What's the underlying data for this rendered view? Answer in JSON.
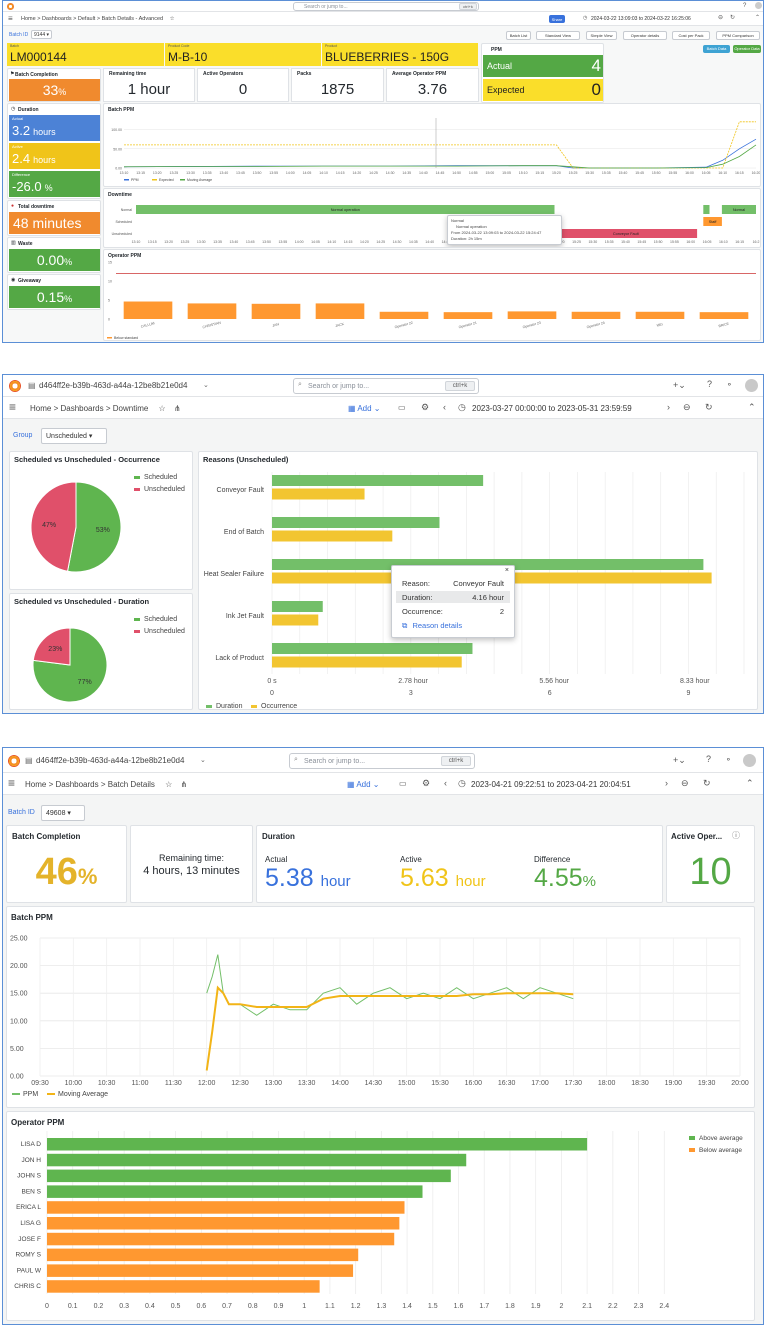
{
  "s1": {
    "search_placeholder": "Search or jump to...",
    "kbd": "ctrl+k",
    "breadcrumb": [
      "Home",
      "Dashboards",
      "Default",
      "Batch Details - Advanced"
    ],
    "share": "Share",
    "time_range": "2024-03-22 13:09:03 to 2024-03-22 16:25:06",
    "batch_label": "Batch ID",
    "batch_value": "9144",
    "buttons": [
      "Batch List",
      "Standard View",
      "Simple View",
      "Operator details",
      "Cost per Pack",
      "PPM Comparison"
    ],
    "edit_btn": "Batch Data",
    "op_btn": "Operator Data",
    "info": [
      {
        "label": "Batch",
        "value": "LM000144"
      },
      {
        "label": "Product Code",
        "value": "M-B-10"
      },
      {
        "label": "Product",
        "value": "BLUEBERRIES - 150G"
      }
    ],
    "ppm_title": "PPM",
    "ppm_actual_label": "Actual",
    "ppm_actual_value": "4",
    "ppm_expected_label": "Expected",
    "ppm_expected_value": "0",
    "stats": [
      {
        "title": "Batch Completion",
        "value": "33",
        "unit": "%"
      },
      {
        "title": "Remaining time",
        "value": "1 hour"
      },
      {
        "title": "Active Operators",
        "value": "0"
      },
      {
        "title": "Packs",
        "value": "1875"
      },
      {
        "title": "Average Operator PPM",
        "value": "3.76"
      }
    ],
    "duration_title": "Duration",
    "duration": [
      {
        "label": "Actual",
        "value": "3.2",
        "unit": "hours",
        "color": "#4c82d6"
      },
      {
        "label": "Active",
        "value": "2.4",
        "unit": "hours",
        "color": "#f0c419"
      },
      {
        "label": "Difference",
        "value": "-26.0",
        "unit": "%",
        "color": "#54a845"
      }
    ],
    "downtime_total_title": "Total downtime",
    "downtime_total_value": "48 minutes",
    "waste_title": "Waste",
    "waste_value": "0.00",
    "waste_unit": "%",
    "giveaway_title": "Giveaway",
    "giveaway_value": "0.15",
    "giveaway_unit": "%",
    "batch_ppm_title": "Batch PPM",
    "batch_ppm_yticks": [
      "100.00",
      "50.00",
      "0.00"
    ],
    "batch_ppm_xticks": [
      "13:10",
      "13:15",
      "13:20",
      "13:25",
      "13:30",
      "13:35",
      "13:40",
      "13:45",
      "13:50",
      "13:55",
      "14:00",
      "14:05",
      "14:10",
      "14:15",
      "14:20",
      "14:25",
      "14:30",
      "14:35",
      "14:40",
      "14:45",
      "14:50",
      "14:55",
      "15:00",
      "15:05",
      "15:10",
      "15:15",
      "15:20",
      "15:25",
      "15:30",
      "15:35",
      "15:40",
      "15:45",
      "15:50",
      "15:55",
      "16:00",
      "16:05",
      "16:10",
      "16:15",
      "16:20"
    ],
    "batch_ppm_legend": [
      "PPM",
      "Expected",
      "Moving Average"
    ],
    "downtime_title": "Downtime",
    "downtime_rows": [
      "Normal",
      "Scheduled",
      "Unscheduled"
    ],
    "downtime_segments": [
      {
        "row": 0,
        "start": 0.0,
        "end": 0.675,
        "label": "Normal operation",
        "color": "#73bf69"
      },
      {
        "row": 0,
        "start": 0.915,
        "end": 0.925,
        "label": "",
        "color": "#73bf69"
      },
      {
        "row": 0,
        "start": 0.945,
        "end": 1.0,
        "label": "Normal",
        "color": "#73bf69"
      },
      {
        "row": 1,
        "start": 0.915,
        "end": 0.945,
        "label": "Staff",
        "color": "#ff9830"
      },
      {
        "row": 2,
        "start": 0.675,
        "end": 0.905,
        "label": "Conveyor Fault",
        "color": "#e0506a"
      }
    ],
    "downtime_xticks": [
      "13:10",
      "13:15",
      "13:20",
      "13:25",
      "13:30",
      "13:35",
      "13:40",
      "13:45",
      "13:50",
      "13:55",
      "14:00",
      "14:05",
      "14:10",
      "14:15",
      "14:20",
      "14:25",
      "14:30",
      "14:35",
      "14:40",
      "14:45",
      "14:50",
      "14:55",
      "15:00",
      "15:05",
      "15:10",
      "15:15",
      "15:20",
      "15:25",
      "15:30",
      "15:35",
      "15:40",
      "15:45",
      "15:50",
      "15:55",
      "16:00",
      "16:05",
      "16:10",
      "16:15",
      "16:2"
    ],
    "downtime_tooltip": {
      "title": "Normal",
      "line1": "Normal operation",
      "line2": "From 2024-03-22 13:09:03 to 2024-03-22 15:24:47",
      "line3": "Duration: 2h 15m"
    },
    "op_ppm_title": "Operator PPM",
    "op_ppm_yticks": [
      "15",
      "10",
      "5",
      "0"
    ],
    "op_ppm_legend": "Below standard",
    "operators": [
      {
        "name": "CALLUM",
        "value": 4.6
      },
      {
        "name": "CHRISTIAN",
        "value": 4.1
      },
      {
        "name": "JAN",
        "value": 4.0
      },
      {
        "name": "JACK",
        "value": 4.1
      },
      {
        "name": "Operator 22",
        "value": 1.9
      },
      {
        "name": "Operator 21",
        "value": 1.8
      },
      {
        "name": "Operator 23",
        "value": 2.0
      },
      {
        "name": "Operator 24",
        "value": 1.9
      },
      {
        "name": "MEI",
        "value": 1.9
      },
      {
        "name": "BRICE",
        "value": 1.8
      }
    ]
  },
  "s2": {
    "dashboard_id": "d464ff2e-b39b-463d-a44a-12be8b21e0d4",
    "search_placeholder": "Search or jump to...",
    "kbd": "ctrl+k",
    "breadcrumb": [
      "Home",
      "Dashboards",
      "Downtime"
    ],
    "add_label": "Add",
    "time_range": "2023-03-27 00:00:00 to 2023-05-31 23:59:59",
    "group_label": "Group",
    "group_value": "Unscheduled",
    "pie1_title": "Scheduled vs Unscheduled - Occurrence",
    "pie2_title": "Scheduled vs Unscheduled - Duration",
    "pie_legend": [
      {
        "name": "Scheduled",
        "color": "#5fb54f"
      },
      {
        "name": "Unscheduled",
        "color": "#e0506a"
      }
    ],
    "reasons_title": "Reasons (Unscheduled)",
    "reasons_xticks_duration": [
      "0 s",
      "2.78 hour",
      "5.56 hour",
      "8.33 hour"
    ],
    "reasons_xticks_occurrence": [
      "0",
      "3",
      "6",
      "9"
    ],
    "legend": [
      "Duration",
      "Occurrence"
    ],
    "tooltip": {
      "rows": [
        {
          "label": "Reason:",
          "value": "Conveyor Fault"
        },
        {
          "label": "Duration:",
          "value": "4.16 hour"
        },
        {
          "label": "Occurrence:",
          "value": "2"
        }
      ],
      "link": "Reason details"
    }
  },
  "s3": {
    "dashboard_id": "d464ff2e-b39b-463d-a44a-12be8b21e0d4",
    "search_placeholder": "Search or jump to...",
    "kbd": "ctrl+k",
    "breadcrumb": [
      "Home",
      "Dashboards",
      "Batch Details"
    ],
    "add_label": "Add",
    "time_range": "2023-04-21 09:22:51 to 2023-04-21 20:04:51",
    "batch_label": "Batch ID",
    "batch_value": "49608",
    "completion_title": "Batch Completion",
    "completion_value": "46",
    "completion_unit": "%",
    "remaining_label": "Remaining time:",
    "remaining_value": "4 hours, 13 minutes",
    "duration_title": "Duration",
    "actual_label": "Actual",
    "actual_value": "5.38",
    "actual_unit": "hour",
    "active_label": "Active",
    "active_value": "5.63",
    "active_unit": "hour",
    "difference_label": "Difference",
    "difference_value": "4.55",
    "difference_unit": "%",
    "operators_title": "Active Oper...",
    "operators_value": "10",
    "batch_ppm_title": "Batch PPM",
    "batch_ppm_legend": [
      "PPM",
      "Moving Average"
    ],
    "op_ppm_title": "Operator PPM",
    "op_ppm_legend": [
      {
        "name": "Above average",
        "color": "#5fb54f"
      },
      {
        "name": "Below average",
        "color": "#ff9830"
      }
    ]
  },
  "chart_data": [
    {
      "type": "line",
      "title": "Batch PPM",
      "x": [
        "13:10",
        "13:30",
        "13:50",
        "14:10",
        "14:30",
        "14:50",
        "15:10",
        "15:20",
        "15:25",
        "15:30",
        "15:50",
        "16:05",
        "16:10",
        "16:15",
        "16:20"
      ],
      "series": [
        {
          "name": "PPM",
          "values": [
            3,
            4,
            5,
            5,
            5,
            6,
            6,
            6,
            0,
            0,
            0,
            2,
            20,
            50,
            75
          ]
        },
        {
          "name": "Expected",
          "values": [
            60,
            60,
            60,
            60,
            60,
            60,
            60,
            60,
            0,
            0,
            0,
            0,
            0,
            120,
            120
          ]
        },
        {
          "name": "Moving Average",
          "values": [
            3,
            4,
            4,
            5,
            5,
            5,
            6,
            6,
            3,
            0,
            0,
            1,
            10,
            30,
            60
          ]
        }
      ],
      "ylim": [
        0,
        130
      ]
    },
    {
      "type": "bar",
      "title": "Operator PPM",
      "categories": [
        "CALLUM",
        "CHRISTIAN",
        "JAN",
        "JACK",
        "Operator 22",
        "Operator 21",
        "Operator 23",
        "Operator 24",
        "MEI",
        "BRICE"
      ],
      "values": [
        4.6,
        4.1,
        4.0,
        4.1,
        1.9,
        1.8,
        2.0,
        1.9,
        1.9,
        1.8
      ],
      "ylim": [
        0,
        15
      ],
      "reference_line": 12
    },
    {
      "type": "pie",
      "title": "Scheduled vs Unscheduled - Occurrence",
      "categories": [
        "Scheduled",
        "Unscheduled"
      ],
      "values": [
        53,
        47
      ],
      "labels": [
        "53%",
        "47%"
      ]
    },
    {
      "type": "pie",
      "title": "Scheduled vs Unscheduled - Duration",
      "categories": [
        "Scheduled",
        "Unscheduled"
      ],
      "values": [
        77,
        23
      ],
      "labels": [
        "77%",
        "23%"
      ]
    },
    {
      "type": "bar",
      "title": "Reasons (Unscheduled)",
      "categories": [
        "Conveyor Fault",
        "End of Batch",
        "Heat Sealer Failure",
        "Ink Jet Fault",
        "Lack of Product"
      ],
      "series": [
        {
          "name": "Duration",
          "values": [
            4.16,
            3.3,
            8.5,
            1.0,
            3.95
          ]
        },
        {
          "name": "Occurrence",
          "values": [
            2,
            2.6,
            9.5,
            1.0,
            4.1
          ]
        }
      ],
      "ylabel": ""
    },
    {
      "type": "line",
      "title": "Batch PPM",
      "xticks": [
        "09:30",
        "10:00",
        "10:30",
        "11:00",
        "11:30",
        "12:00",
        "12:30",
        "13:00",
        "13:30",
        "14:00",
        "14:30",
        "15:00",
        "15:30",
        "16:00",
        "16:30",
        "17:00",
        "17:30",
        "18:00",
        "18:30",
        "19:00",
        "19:30",
        "20:00"
      ],
      "yticks": [
        "25.00",
        "20.00",
        "15.00",
        "10.00",
        "5.00",
        "0.00"
      ],
      "series": [
        {
          "name": "PPM",
          "x": [
            "12:00",
            "12:05",
            "12:10",
            "12:15",
            "12:20",
            "12:30",
            "12:45",
            "13:00",
            "13:15",
            "13:30",
            "13:45",
            "14:00",
            "14:15",
            "14:30",
            "14:45",
            "15:00",
            "15:15",
            "15:30",
            "15:45",
            "16:00",
            "16:15",
            "16:30",
            "16:45",
            "17:00",
            "17:15",
            "17:30"
          ],
          "values": [
            15,
            18,
            22,
            15,
            13,
            13,
            11,
            13,
            12,
            12,
            15,
            16,
            13,
            15,
            16,
            14,
            15,
            14,
            16,
            14,
            15,
            16,
            14,
            16,
            15,
            14
          ]
        },
        {
          "name": "Moving Average",
          "x": [
            "12:00",
            "12:05",
            "12:10",
            "12:15",
            "12:20",
            "12:30",
            "12:45",
            "13:00",
            "13:15",
            "13:30",
            "13:45",
            "14:00",
            "14:15",
            "14:30",
            "14:45",
            "15:00",
            "15:15",
            "15:30",
            "15:45",
            "16:00",
            "16:15",
            "16:30",
            "16:45",
            "17:00",
            "17:15",
            "17:30"
          ],
          "values": [
            1,
            8,
            16,
            15,
            13,
            13,
            12.5,
            12.5,
            12.5,
            12.5,
            14,
            14.5,
            14.5,
            14.5,
            14.5,
            14.5,
            14.5,
            14.5,
            14.5,
            14.8,
            14.8,
            15,
            15,
            15,
            15,
            14.8
          ]
        }
      ],
      "ylim": [
        0,
        25
      ]
    },
    {
      "type": "bar",
      "orientation": "horizontal",
      "title": "Operator PPM",
      "categories": [
        "LISA D",
        "JON H",
        "JOHN S",
        "BEN S",
        "ERICA L",
        "LISA G",
        "JOSE F",
        "ROMY S",
        "PAUL W",
        "CHRIS C"
      ],
      "values": [
        2.1,
        1.63,
        1.57,
        1.46,
        1.39,
        1.37,
        1.35,
        1.21,
        1.19,
        1.06
      ],
      "groups": [
        "Above average",
        "Above average",
        "Above average",
        "Above average",
        "Below average",
        "Below average",
        "Below average",
        "Below average",
        "Below average",
        "Below average"
      ],
      "xticks": [
        "0",
        "0.1",
        "0.2",
        "0.3",
        "0.4",
        "0.5",
        "0.6",
        "0.7",
        "0.8",
        "0.9",
        "1",
        "1.1",
        "1.2",
        "1.3",
        "1.4",
        "1.5",
        "1.6",
        "1.7",
        "1.8",
        "1.9",
        "2",
        "2.1",
        "2.2",
        "2.3",
        "2.4"
      ],
      "xlim": [
        0,
        2.5
      ]
    }
  ]
}
